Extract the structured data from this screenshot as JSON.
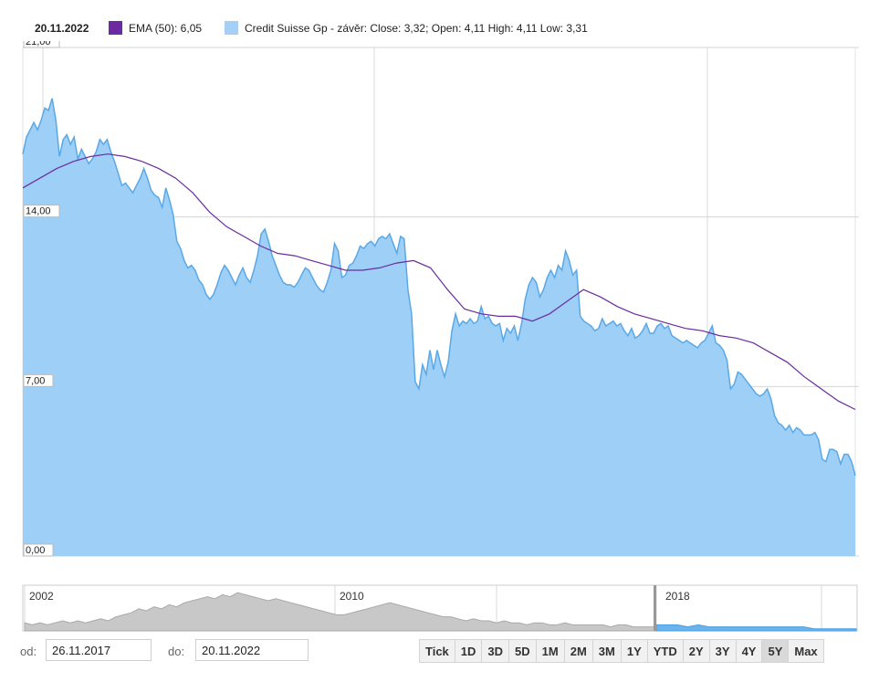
{
  "legend": {
    "date": "20.11.2022",
    "ema_label": "EMA (50): 6,05",
    "price_label": "Credit Suisse Gp - závěr: Close: 3,32; Open: 4,11 High: 4,11 Low: 3,31",
    "ema_color": "#6a2ca0",
    "price_color": "#a6cff5"
  },
  "chart_data": {
    "type": "area",
    "title": "Credit Suisse Gp - závěr",
    "ylim": [
      0,
      21
    ],
    "yticks": [
      "0,00",
      "7,00",
      "14,00",
      "21,00"
    ],
    "grid": true,
    "x_range": [
      "26.11.2017",
      "20.11.2022"
    ],
    "series": [
      {
        "name": "Credit Suisse Gp - závěr",
        "color": "#9ecff7",
        "line_color": "#5aa8e6",
        "values": [
          16.6,
          17.3,
          17.6,
          17.9,
          17.6,
          18.0,
          18.5,
          18.4,
          18.9,
          18.0,
          16.5,
          17.2,
          17.4,
          17.0,
          17.3,
          16.4,
          16.8,
          16.5,
          16.2,
          16.4,
          16.7,
          17.2,
          17.0,
          17.2,
          16.7,
          16.3,
          15.8,
          15.3,
          15.4,
          15.2,
          15.0,
          15.3,
          15.6,
          16.0,
          15.6,
          15.1,
          14.9,
          14.8,
          14.4,
          15.2,
          14.7,
          14.1,
          13.0,
          12.7,
          12.2,
          11.9,
          12.0,
          11.8,
          11.4,
          11.2,
          10.8,
          10.6,
          10.8,
          11.2,
          11.7,
          12.0,
          11.8,
          11.5,
          11.2,
          11.6,
          11.9,
          11.5,
          11.3,
          11.8,
          12.4,
          13.3,
          13.5,
          13.0,
          12.4,
          12.0,
          11.6,
          11.3,
          11.2,
          11.2,
          11.1,
          11.3,
          11.6,
          11.9,
          11.8,
          11.5,
          11.2,
          11.0,
          10.9,
          11.3,
          11.8,
          12.9,
          12.6,
          11.5,
          11.6,
          12.0,
          12.1,
          12.4,
          12.8,
          12.7,
          12.9,
          13.0,
          12.8,
          13.1,
          13.2,
          13.1,
          13.3,
          12.9,
          12.5,
          13.2,
          13.1,
          11.0,
          10.0,
          7.2,
          6.9,
          7.9,
          7.5,
          8.5,
          7.7,
          8.5,
          7.9,
          7.4,
          8.0,
          9.3,
          10.0,
          9.5,
          9.7,
          9.6,
          9.8,
          9.6,
          9.7,
          10.3,
          9.8,
          9.9,
          9.6,
          9.5,
          9.6,
          8.9,
          9.4,
          9.2,
          9.5,
          8.9,
          9.6,
          10.6,
          11.2,
          11.5,
          11.3,
          10.7,
          11.0,
          11.5,
          11.8,
          11.5,
          12.0,
          11.8,
          12.6,
          12.2,
          11.6,
          11.8,
          9.9,
          9.7,
          9.6,
          9.5,
          9.3,
          9.4,
          9.8,
          9.5,
          9.6,
          9.7,
          9.5,
          9.6,
          9.3,
          9.1,
          9.4,
          9.0,
          9.1,
          9.3,
          9.6,
          9.2,
          9.2,
          9.5,
          9.6,
          9.4,
          9.5,
          9.1,
          9.0,
          8.9,
          8.8,
          8.9,
          8.8,
          8.7,
          8.6,
          8.8,
          8.9,
          9.2,
          9.5,
          8.8,
          8.7,
          8.5,
          8.1,
          6.9,
          7.1,
          7.6,
          7.5,
          7.3,
          7.1,
          6.9,
          6.7,
          6.6,
          6.7,
          6.9,
          6.5,
          5.8,
          5.5,
          5.4,
          5.2,
          5.4,
          5.1,
          5.3,
          5.2,
          5.0,
          5.0,
          5.0,
          5.1,
          4.8,
          4.0,
          3.9,
          4.4,
          4.4,
          4.3,
          3.8,
          4.2,
          4.2,
          3.9,
          3.32
        ]
      },
      {
        "name": "EMA (50)",
        "color": "#6a2ca0",
        "values": [
          15.2,
          15.6,
          16.0,
          16.3,
          16.5,
          16.6,
          16.5,
          16.3,
          16.0,
          15.6,
          15.0,
          14.2,
          13.6,
          13.2,
          12.8,
          12.5,
          12.4,
          12.2,
          12.0,
          11.8,
          11.8,
          11.9,
          12.1,
          12.2,
          11.9,
          11.0,
          10.2,
          10.0,
          9.9,
          9.9,
          9.7,
          10.0,
          10.5,
          11.0,
          10.7,
          10.3,
          10.0,
          9.8,
          9.6,
          9.4,
          9.3,
          9.1,
          9.0,
          8.8,
          8.4,
          8.0,
          7.4,
          6.9,
          6.4,
          6.05
        ]
      }
    ]
  },
  "navigator": {
    "labels": [
      "2002",
      "2010",
      "2018"
    ],
    "gray_values": [
      4,
      3,
      4,
      3,
      4,
      5,
      4,
      5,
      4,
      5,
      6,
      5,
      7,
      8,
      9,
      11,
      10,
      12,
      11,
      13,
      12,
      14,
      15,
      16,
      17,
      16,
      18,
      17,
      19,
      18,
      17,
      16,
      15,
      16,
      15,
      14,
      13,
      12,
      11,
      10,
      9,
      8,
      8,
      9,
      10,
      11,
      12,
      13,
      14,
      13,
      12,
      11,
      10,
      9,
      8,
      7,
      7,
      6,
      5,
      6,
      5,
      5,
      4,
      5,
      4,
      4,
      3,
      4,
      4,
      3,
      3,
      4,
      3,
      3,
      3,
      3,
      3,
      2,
      3,
      3,
      2,
      2,
      2,
      2
    ],
    "blue_values": [
      3,
      3,
      3,
      2,
      3,
      2,
      2,
      2,
      2,
      2,
      2,
      2,
      2,
      2,
      2,
      1,
      1,
      1,
      1,
      1
    ]
  },
  "range_selector": {
    "from_label": "od:",
    "from_value": "26.11.2017",
    "to_label": "do:",
    "to_value": "20.11.2022",
    "buttons": [
      "Tick",
      "1D",
      "3D",
      "5D",
      "1M",
      "2M",
      "3M",
      "1Y",
      "YTD",
      "2Y",
      "3Y",
      "4Y",
      "5Y",
      "Max"
    ],
    "active_button": "5Y"
  }
}
